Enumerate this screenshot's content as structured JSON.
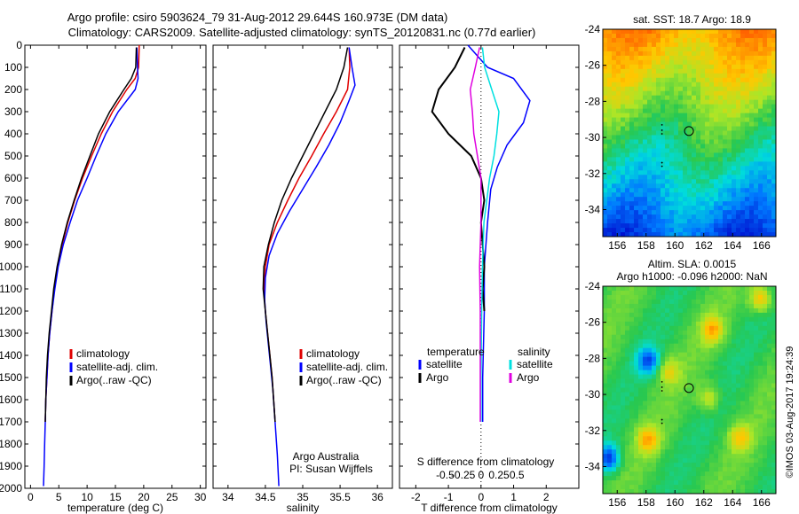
{
  "title": {
    "line1": "Argo profile: csiro 5903624_79 31-Aug-2012 29.644S 160.973E (DM data)",
    "line2": "Climatology: CARS2009. Satellite-adjusted climatology: synTS_20120831.nc (0.77d earlier)"
  },
  "colors": {
    "climatology": "#e00000",
    "satellite": "#0000ff",
    "argo": "#000000",
    "sat_salinity": "#00e0e0",
    "argo_salinity": "#e000e0"
  },
  "chart_data": [
    {
      "type": "line",
      "id": "temperature",
      "xlabel": "temperature (deg C)",
      "ylabel": "",
      "xlim": [
        -1,
        31
      ],
      "ylim": [
        2000,
        0
      ],
      "xticks": [
        0,
        5,
        10,
        15,
        20,
        25,
        30
      ],
      "yticks": [
        0,
        100,
        200,
        300,
        400,
        500,
        600,
        700,
        800,
        900,
        1000,
        1100,
        1200,
        1300,
        1400,
        1500,
        1600,
        1700,
        1800,
        1900,
        2000
      ],
      "legend": [
        "climatology",
        "satellite-adj. clim.",
        "Argo(..raw -QC)"
      ],
      "legend_position": "lower-middle",
      "series": [
        {
          "name": "climatology",
          "color": "#e00000",
          "points": [
            [
              19.2,
              0
            ],
            [
              19.1,
              100
            ],
            [
              18.5,
              150
            ],
            [
              17,
              200
            ],
            [
              14.5,
              300
            ],
            [
              12.5,
              400
            ],
            [
              10.8,
              500
            ],
            [
              9.2,
              600
            ],
            [
              7.8,
              700
            ],
            [
              6.6,
              800
            ],
            [
              5.6,
              900
            ],
            [
              4.8,
              1000
            ],
            [
              4.2,
              1100
            ],
            [
              3.8,
              1200
            ],
            [
              3.4,
              1300
            ],
            [
              3.1,
              1400
            ],
            [
              2.9,
              1500
            ],
            [
              2.7,
              1600
            ],
            [
              2.6,
              1700
            ]
          ]
        },
        {
          "name": "satellite-adj. clim.",
          "color": "#0000ff",
          "points": [
            [
              18.8,
              10
            ],
            [
              18.9,
              100
            ],
            [
              19,
              150
            ],
            [
              18.5,
              200
            ],
            [
              15.5,
              300
            ],
            [
              13.3,
              400
            ],
            [
              11.6,
              500
            ],
            [
              10,
              600
            ],
            [
              8.3,
              700
            ],
            [
              7,
              800
            ],
            [
              5.8,
              900
            ],
            [
              4.9,
              1000
            ],
            [
              4.3,
              1100
            ],
            [
              3.8,
              1200
            ],
            [
              3.4,
              1300
            ],
            [
              3.1,
              1400
            ],
            [
              2.9,
              1500
            ],
            [
              2.7,
              1600
            ],
            [
              2.6,
              1700
            ],
            [
              2.5,
              1800
            ],
            [
              2.4,
              1900
            ],
            [
              2.3,
              1990
            ]
          ]
        },
        {
          "name": "Argo(..raw -QC)",
          "color": "#000000",
          "points": [
            [
              18.7,
              10
            ],
            [
              18.6,
              100
            ],
            [
              17.8,
              150
            ],
            [
              16.5,
              200
            ],
            [
              14,
              300
            ],
            [
              12,
              400
            ],
            [
              10.5,
              500
            ],
            [
              9,
              600
            ],
            [
              7.7,
              700
            ],
            [
              6.5,
              800
            ],
            [
              5.5,
              900
            ],
            [
              4.7,
              1000
            ],
            [
              4.1,
              1100
            ],
            [
              3.7,
              1200
            ],
            [
              3.3,
              1300
            ],
            [
              3,
              1400
            ],
            [
              2.8,
              1500
            ],
            [
              2.7,
              1600
            ],
            [
              2.6,
              1700
            ]
          ]
        }
      ]
    },
    {
      "type": "line",
      "id": "salinity",
      "xlabel": "salinity",
      "xlim": [
        33.8,
        36.2
      ],
      "ylim": [
        2000,
        0
      ],
      "xticks": [
        34,
        34.5,
        35,
        35.5,
        36
      ],
      "legend": [
        "climatology",
        "satellite-adj. clim.",
        "Argo(..raw -QC)"
      ],
      "legend_position": "lower-right",
      "annotation": [
        "Argo Australia",
        "PI: Susan Wijffels"
      ],
      "series": [
        {
          "name": "climatology",
          "color": "#e00000",
          "points": [
            [
              35.62,
              10
            ],
            [
              35.63,
              100
            ],
            [
              35.6,
              200
            ],
            [
              35.45,
              300
            ],
            [
              35.28,
              400
            ],
            [
              35.12,
              500
            ],
            [
              34.95,
              600
            ],
            [
              34.8,
              700
            ],
            [
              34.66,
              800
            ],
            [
              34.55,
              900
            ],
            [
              34.5,
              1000
            ],
            [
              34.48,
              1100
            ],
            [
              34.5,
              1200
            ],
            [
              34.53,
              1300
            ],
            [
              34.56,
              1400
            ],
            [
              34.59,
              1500
            ],
            [
              34.61,
              1600
            ],
            [
              34.63,
              1700
            ]
          ]
        },
        {
          "name": "satellite-adj. clim.",
          "color": "#0000ff",
          "points": [
            [
              35.62,
              10
            ],
            [
              35.66,
              100
            ],
            [
              35.7,
              180
            ],
            [
              35.62,
              250
            ],
            [
              35.5,
              350
            ],
            [
              35.35,
              450
            ],
            [
              35.18,
              550
            ],
            [
              35,
              650
            ],
            [
              34.82,
              750
            ],
            [
              34.66,
              850
            ],
            [
              34.55,
              950
            ],
            [
              34.5,
              1050
            ],
            [
              34.49,
              1150
            ],
            [
              34.51,
              1250
            ],
            [
              34.54,
              1350
            ],
            [
              34.57,
              1450
            ],
            [
              34.6,
              1550
            ],
            [
              34.62,
              1650
            ],
            [
              34.64,
              1750
            ],
            [
              34.66,
              1850
            ],
            [
              34.68,
              1990
            ]
          ]
        },
        {
          "name": "Argo(..raw -QC)",
          "color": "#000000",
          "points": [
            [
              35.6,
              10
            ],
            [
              35.55,
              100
            ],
            [
              35.45,
              200
            ],
            [
              35.3,
              300
            ],
            [
              35.15,
              400
            ],
            [
              35,
              500
            ],
            [
              34.85,
              600
            ],
            [
              34.72,
              700
            ],
            [
              34.62,
              800
            ],
            [
              34.54,
              900
            ],
            [
              34.48,
              1000
            ],
            [
              34.47,
              1100
            ],
            [
              34.5,
              1200
            ],
            [
              34.53,
              1300
            ],
            [
              34.56,
              1400
            ],
            [
              34.59,
              1500
            ],
            [
              34.61,
              1600
            ],
            [
              34.63,
              1700
            ]
          ]
        }
      ]
    },
    {
      "type": "line",
      "id": "difference",
      "xlabel": "T difference from climatology",
      "xlabel_top": "S difference from climatology",
      "xlim": [
        -2.5,
        3
      ],
      "ylim": [
        2000,
        0
      ],
      "xticks": [
        -2,
        -1,
        0,
        1,
        2
      ],
      "xticks_top": [
        -0.5,
        -0.25,
        0,
        0.25,
        0.5
      ],
      "legend": [
        {
          "group": "temperature",
          "items": [
            "satellite",
            "Argo"
          ]
        },
        {
          "group": "salinity",
          "items": [
            "satellite",
            "Argo"
          ]
        }
      ],
      "series": [
        {
          "name": "temperature satellite",
          "color": "#0000ff",
          "points": [
            [
              -0.4,
              0
            ],
            [
              0.2,
              100
            ],
            [
              1,
              150
            ],
            [
              1.5,
              250
            ],
            [
              1.3,
              350
            ],
            [
              0.8,
              450
            ],
            [
              0.5,
              550
            ],
            [
              0.3,
              650
            ],
            [
              0.2,
              800
            ],
            [
              0.1,
              1000
            ],
            [
              0.1,
              1200
            ],
            [
              0.05,
              1500
            ],
            [
              0.05,
              1700
            ]
          ]
        },
        {
          "name": "temperature Argo",
          "color": "#000000",
          "points": [
            [
              -0.5,
              10
            ],
            [
              -0.8,
              100
            ],
            [
              -1.3,
              200
            ],
            [
              -1.5,
              300
            ],
            [
              -1,
              400
            ],
            [
              -0.3,
              500
            ],
            [
              0,
              600
            ],
            [
              0.1,
              700
            ],
            [
              0,
              800
            ],
            [
              0.05,
              900
            ],
            [
              0.1,
              1000
            ],
            [
              0.05,
              1100
            ],
            [
              0.1,
              1200
            ]
          ]
        },
        {
          "name": "salinity satellite",
          "color": "#00e0e0",
          "points": [
            [
              0.02,
              10
            ],
            [
              0.05,
              100
            ],
            [
              0.15,
              200
            ],
            [
              0.25,
              300
            ],
            [
              0.22,
              400
            ],
            [
              0.18,
              500
            ],
            [
              0.12,
              600
            ],
            [
              0.08,
              700
            ],
            [
              0.04,
              800
            ],
            [
              0.02,
              1000
            ],
            [
              0.01,
              1200
            ],
            [
              0,
              1500
            ],
            [
              0,
              1700
            ]
          ]
        },
        {
          "name": "salinity Argo",
          "color": "#e000e0",
          "points": [
            [
              -0.02,
              10
            ],
            [
              -0.08,
              100
            ],
            [
              -0.15,
              200
            ],
            [
              -0.12,
              300
            ],
            [
              -0.1,
              400
            ],
            [
              -0.05,
              500
            ],
            [
              0,
              600
            ],
            [
              0,
              800
            ],
            [
              -0.02,
              1000
            ],
            [
              -0.01,
              1200
            ],
            [
              -0.01,
              1500
            ],
            [
              -0.01,
              1700
            ]
          ]
        }
      ]
    },
    {
      "type": "heatmap",
      "id": "sst-map",
      "title": "sat. SST: 18.7 Argo: 18.9",
      "xlim": [
        155,
        167
      ],
      "ylim": [
        -35.5,
        -24
      ],
      "xticks": [
        156,
        158,
        160,
        162,
        164,
        166
      ],
      "yticks": [
        -24,
        -26,
        -28,
        -30,
        -32,
        -34
      ],
      "marker": {
        "lon": 160.973,
        "lat": -29.644
      }
    },
    {
      "type": "heatmap",
      "id": "sla-map",
      "title": [
        "Altim. SLA: 0.0015",
        "Argo h1000: -0.096 h2000: NaN"
      ],
      "xlim": [
        155,
        167
      ],
      "ylim": [
        -35.5,
        -24
      ],
      "xticks": [
        156,
        158,
        160,
        162,
        164,
        166
      ],
      "yticks": [
        -24,
        -26,
        -28,
        -30,
        -32,
        -34
      ],
      "marker": {
        "lon": 160.973,
        "lat": -29.644
      }
    }
  ],
  "watermark": "©IMOS 03-Aug-2017 19:24:39"
}
